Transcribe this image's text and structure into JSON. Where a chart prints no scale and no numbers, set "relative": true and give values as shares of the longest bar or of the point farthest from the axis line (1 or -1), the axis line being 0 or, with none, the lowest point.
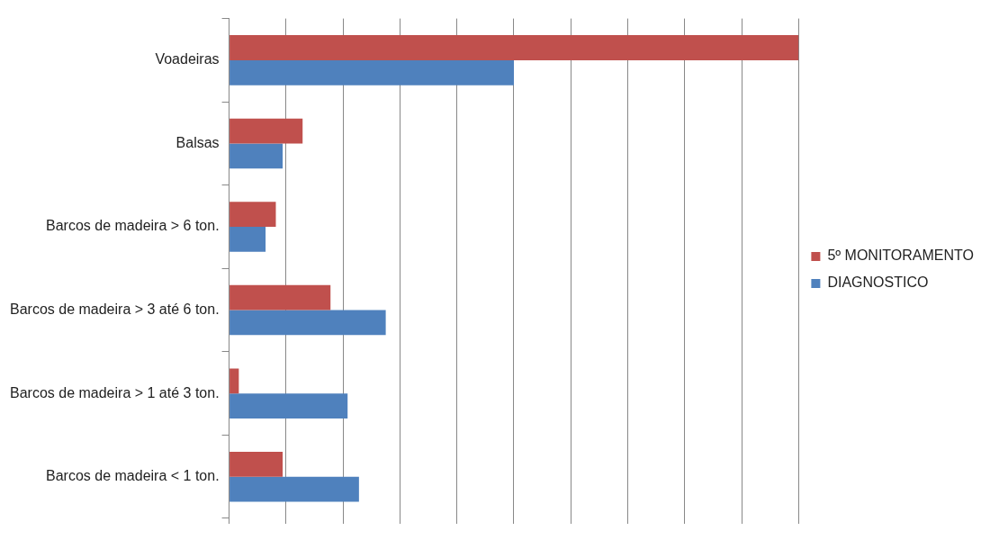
{
  "chart_data": {
    "type": "bar",
    "orientation": "horizontal",
    "relative": true,
    "grid": "x",
    "legend": "right",
    "categories": [
      "Voadeiras",
      "Balsas",
      "Barcos de madeira > 6 ton.",
      "Barcos de madeira > 3 até 6 ton.",
      "Barcos de madeira > 1 até 3 ton.",
      "Barcos de madeira < 1 ton."
    ],
    "series": [
      {
        "name": "5º MONITORAMENTO",
        "color": "#c0504d",
        "values": [
          1,
          0.129,
          0.082,
          0.178,
          0.017,
          0.094
        ]
      },
      {
        "name": "DIAGNOSTICO",
        "color": "#4f81bd",
        "values": [
          0.5,
          0.094,
          0.064,
          0.275,
          0.208,
          0.228
        ]
      }
    ]
  }
}
